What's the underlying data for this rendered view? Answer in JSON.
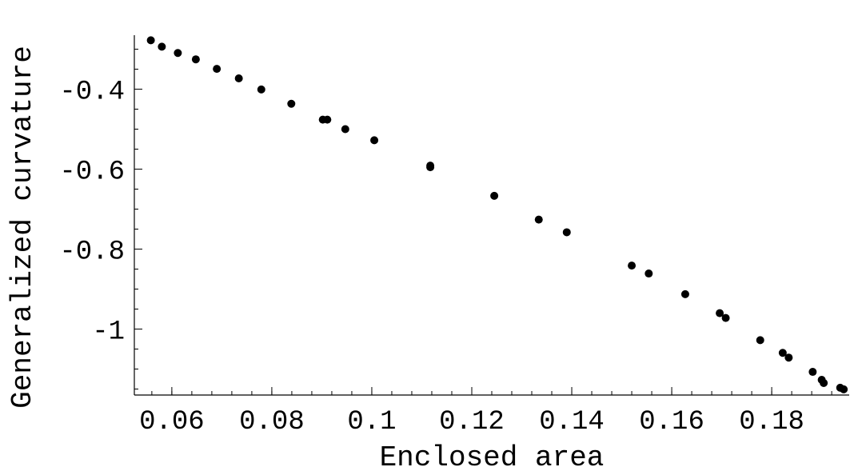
{
  "chart_data": {
    "type": "scatter",
    "title": "",
    "xlabel": "Enclosed area",
    "ylabel": "Generalized curvature",
    "xlim": [
      0.0525,
      0.1955
    ],
    "ylim": [
      -1.165,
      -0.265
    ],
    "x_ticks": [
      {
        "value": 0.06,
        "label": "0.06"
      },
      {
        "value": 0.08,
        "label": "0.08"
      },
      {
        "value": 0.1,
        "label": "0.1"
      },
      {
        "value": 0.12,
        "label": "0.12"
      },
      {
        "value": 0.14,
        "label": "0.14"
      },
      {
        "value": 0.16,
        "label": "0.16"
      },
      {
        "value": 0.18,
        "label": "0.18"
      }
    ],
    "x_minor_step": 0.004,
    "y_ticks": [
      {
        "value": -0.4,
        "label": "-0.4"
      },
      {
        "value": -0.6,
        "label": "-0.6"
      },
      {
        "value": -0.8,
        "label": "-0.8"
      },
      {
        "value": -1.0,
        "label": "-1"
      }
    ],
    "y_minor_step": 0.05,
    "grid": false,
    "legend": "none",
    "series": [
      {
        "color": "#000000",
        "points": [
          [
            0.0558,
            -0.2778
          ],
          [
            0.058,
            -0.2937
          ],
          [
            0.0612,
            -0.3095
          ],
          [
            0.0648,
            -0.3254
          ],
          [
            0.069,
            -0.3492
          ],
          [
            0.0734,
            -0.373
          ],
          [
            0.0779,
            -0.4008
          ],
          [
            0.0839,
            -0.4365
          ],
          [
            0.0902,
            -0.4762
          ],
          [
            0.0911,
            -0.4762
          ],
          [
            0.0947,
            -0.5
          ],
          [
            0.1005,
            -0.5278
          ],
          [
            0.1117,
            -0.5913
          ],
          [
            0.1117,
            -0.5952
          ],
          [
            0.1245,
            -0.6667
          ],
          [
            0.1334,
            -0.7262
          ],
          [
            0.139,
            -0.7579
          ],
          [
            0.152,
            -0.8413
          ],
          [
            0.1554,
            -0.8611
          ],
          [
            0.1627,
            -0.9127
          ],
          [
            0.1696,
            -0.9603
          ],
          [
            0.1708,
            -0.9722
          ],
          [
            0.1777,
            -1.0278
          ],
          [
            0.1822,
            -1.0595
          ],
          [
            0.1834,
            -1.0714
          ],
          [
            0.1882,
            -1.1071
          ],
          [
            0.19,
            -1.127
          ],
          [
            0.1904,
            -1.1349
          ],
          [
            0.1937,
            -1.1468
          ],
          [
            0.1944,
            -1.1508
          ]
        ]
      }
    ]
  }
}
